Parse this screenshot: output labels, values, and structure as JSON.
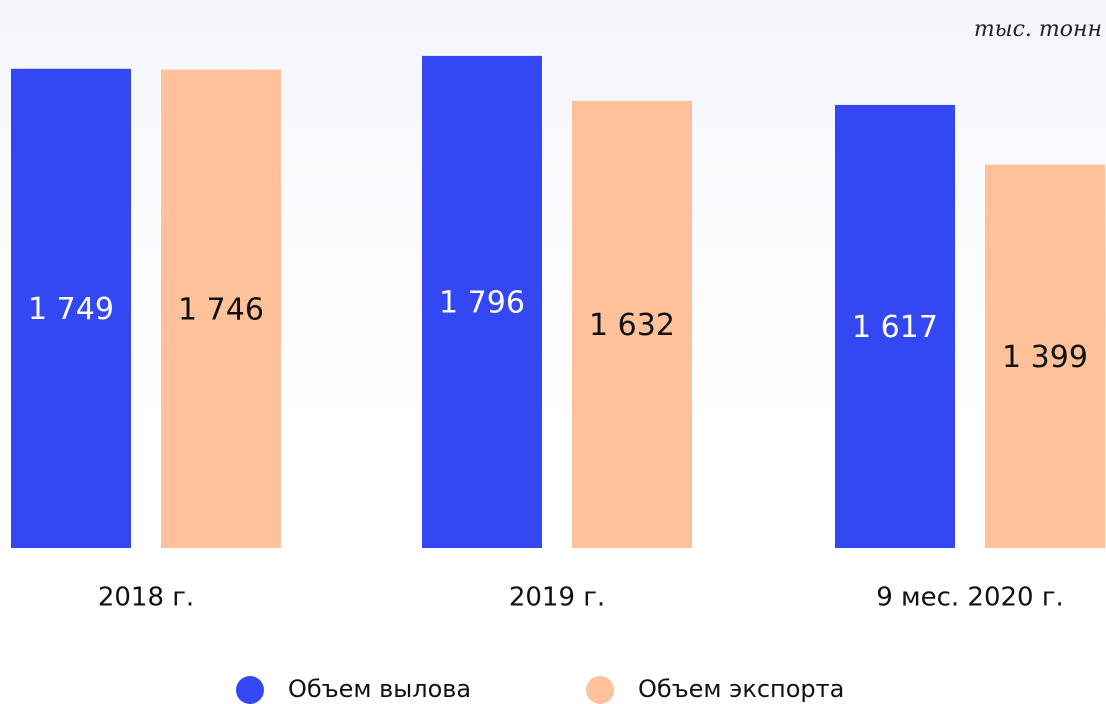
{
  "chart_data": {
    "type": "bar",
    "unit": "тыс. тонн",
    "categories": [
      "2018 г.",
      "2019 г.",
      "9 мес. 2020 г."
    ],
    "series": [
      {
        "name": "Объем вылова",
        "color": "#3347f2",
        "values": [
          1749,
          1796,
          1617
        ],
        "value_labels": [
          "1 749",
          "1 796",
          "1 617"
        ]
      },
      {
        "name": "Объем экспорта",
        "color": "#ffc19a",
        "values": [
          1746,
          1632,
          1399
        ],
        "value_labels": [
          "1 746",
          "1 632",
          "1 399"
        ]
      }
    ],
    "ylim": [
      0,
      2000
    ],
    "legend": "bottom"
  }
}
